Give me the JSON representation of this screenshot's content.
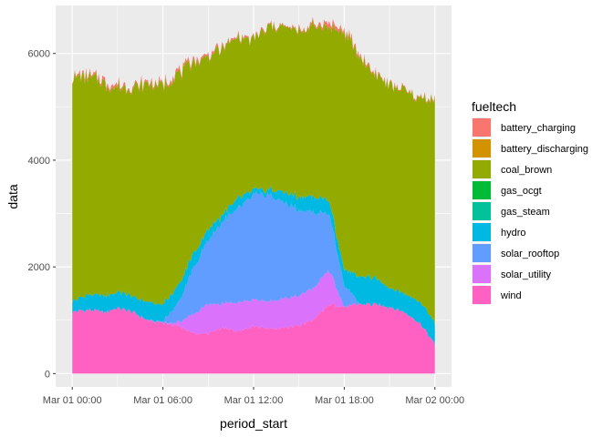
{
  "chart_data": {
    "type": "area",
    "stacked": true,
    "xlabel": "period_start",
    "ylabel": "data",
    "x_ticks": [
      "Mar 01 00:00",
      "Mar 01 06:00",
      "Mar 01 12:00",
      "Mar 01 18:00",
      "Mar 02 00:00"
    ],
    "y_ticks": [
      "0",
      "2000",
      "4000",
      "6000"
    ],
    "xlim_hours": [
      0,
      24
    ],
    "ylim": [
      -250,
      6900
    ],
    "grid": true,
    "legend_position": "right",
    "legend_title": "fueltech",
    "x": [
      "Mar 01 00:00",
      "Mar 01 01:00",
      "Mar 01 02:00",
      "Mar 01 03:00",
      "Mar 01 04:00",
      "Mar 01 05:00",
      "Mar 01 06:00",
      "Mar 01 07:00",
      "Mar 01 08:00",
      "Mar 01 09:00",
      "Mar 01 10:00",
      "Mar 01 11:00",
      "Mar 01 12:00",
      "Mar 01 13:00",
      "Mar 01 14:00",
      "Mar 01 15:00",
      "Mar 01 16:00",
      "Mar 01 17:00",
      "Mar 01 18:00",
      "Mar 01 19:00",
      "Mar 01 20:00",
      "Mar 01 21:00",
      "Mar 01 22:00",
      "Mar 01 23:00",
      "Mar 02 00:00"
    ],
    "series": [
      {
        "name": "wind",
        "color": "#FF61C3",
        "values": [
          1150,
          1200,
          1150,
          1220,
          1150,
          1000,
          950,
          900,
          750,
          750,
          850,
          800,
          900,
          850,
          850,
          900,
          1000,
          1300,
          1250,
          1300,
          1300,
          1250,
          1150,
          950,
          550
        ]
      },
      {
        "name": "solar_utility",
        "color": "#DB72FB",
        "values": [
          0,
          0,
          0,
          0,
          0,
          0,
          0,
          60,
          350,
          550,
          450,
          550,
          500,
          500,
          550,
          550,
          600,
          650,
          0,
          0,
          0,
          0,
          0,
          0,
          0
        ]
      },
      {
        "name": "solar_rooftop",
        "color": "#619CFF",
        "values": [
          0,
          0,
          0,
          0,
          0,
          0,
          30,
          350,
          850,
          1200,
          1550,
          1750,
          1950,
          2000,
          1800,
          1600,
          1400,
          1050,
          400,
          0,
          0,
          0,
          0,
          0,
          0
        ]
      },
      {
        "name": "hydro",
        "color": "#00B9E3",
        "values": [
          200,
          280,
          300,
          300,
          300,
          330,
          320,
          330,
          280,
          200,
          150,
          200,
          100,
          100,
          200,
          250,
          300,
          250,
          300,
          500,
          500,
          350,
          350,
          400,
          400
        ]
      },
      {
        "name": "gas_steam",
        "color": "#00C19A",
        "values": [
          0,
          0,
          0,
          0,
          0,
          0,
          0,
          0,
          0,
          0,
          0,
          0,
          0,
          0,
          0,
          0,
          0,
          0,
          0,
          0,
          0,
          0,
          0,
          0,
          0
        ]
      },
      {
        "name": "gas_ocgt",
        "color": "#00BA38",
        "values": [
          0,
          0,
          0,
          0,
          0,
          0,
          0,
          0,
          0,
          0,
          0,
          0,
          0,
          0,
          0,
          0,
          0,
          0,
          0,
          0,
          0,
          0,
          0,
          0,
          0
        ]
      },
      {
        "name": "coal_brown",
        "color": "#93AA00",
        "values": [
          4200,
          4080,
          4000,
          3830,
          3900,
          4100,
          4100,
          3980,
          3600,
          3230,
          3120,
          3000,
          2800,
          3050,
          3100,
          3100,
          3200,
          3250,
          4450,
          4120,
          3820,
          3800,
          3800,
          3800,
          4200
        ]
      },
      {
        "name": "battery_discharging",
        "color": "#D39200",
        "values": [
          0,
          0,
          0,
          0,
          0,
          0,
          0,
          0,
          0,
          0,
          0,
          0,
          0,
          0,
          0,
          0,
          0,
          0,
          0,
          0,
          0,
          0,
          0,
          0,
          0
        ]
      },
      {
        "name": "battery_charging",
        "color": "#F8766D",
        "values": [
          20,
          40,
          50,
          40,
          30,
          30,
          40,
          50,
          40,
          40,
          30,
          30,
          20,
          20,
          20,
          30,
          40,
          80,
          50,
          30,
          30,
          20,
          20,
          20,
          20
        ]
      }
    ],
    "legend": [
      {
        "label": "battery_charging",
        "color": "#F8766D"
      },
      {
        "label": "battery_discharging",
        "color": "#D39200"
      },
      {
        "label": "coal_brown",
        "color": "#93AA00"
      },
      {
        "label": "gas_ocgt",
        "color": "#00BA38"
      },
      {
        "label": "gas_steam",
        "color": "#00C19A"
      },
      {
        "label": "hydro",
        "color": "#00B9E3"
      },
      {
        "label": "solar_rooftop",
        "color": "#619CFF"
      },
      {
        "label": "solar_utility",
        "color": "#DB72FB"
      },
      {
        "label": "wind",
        "color": "#FF61C3"
      }
    ]
  }
}
